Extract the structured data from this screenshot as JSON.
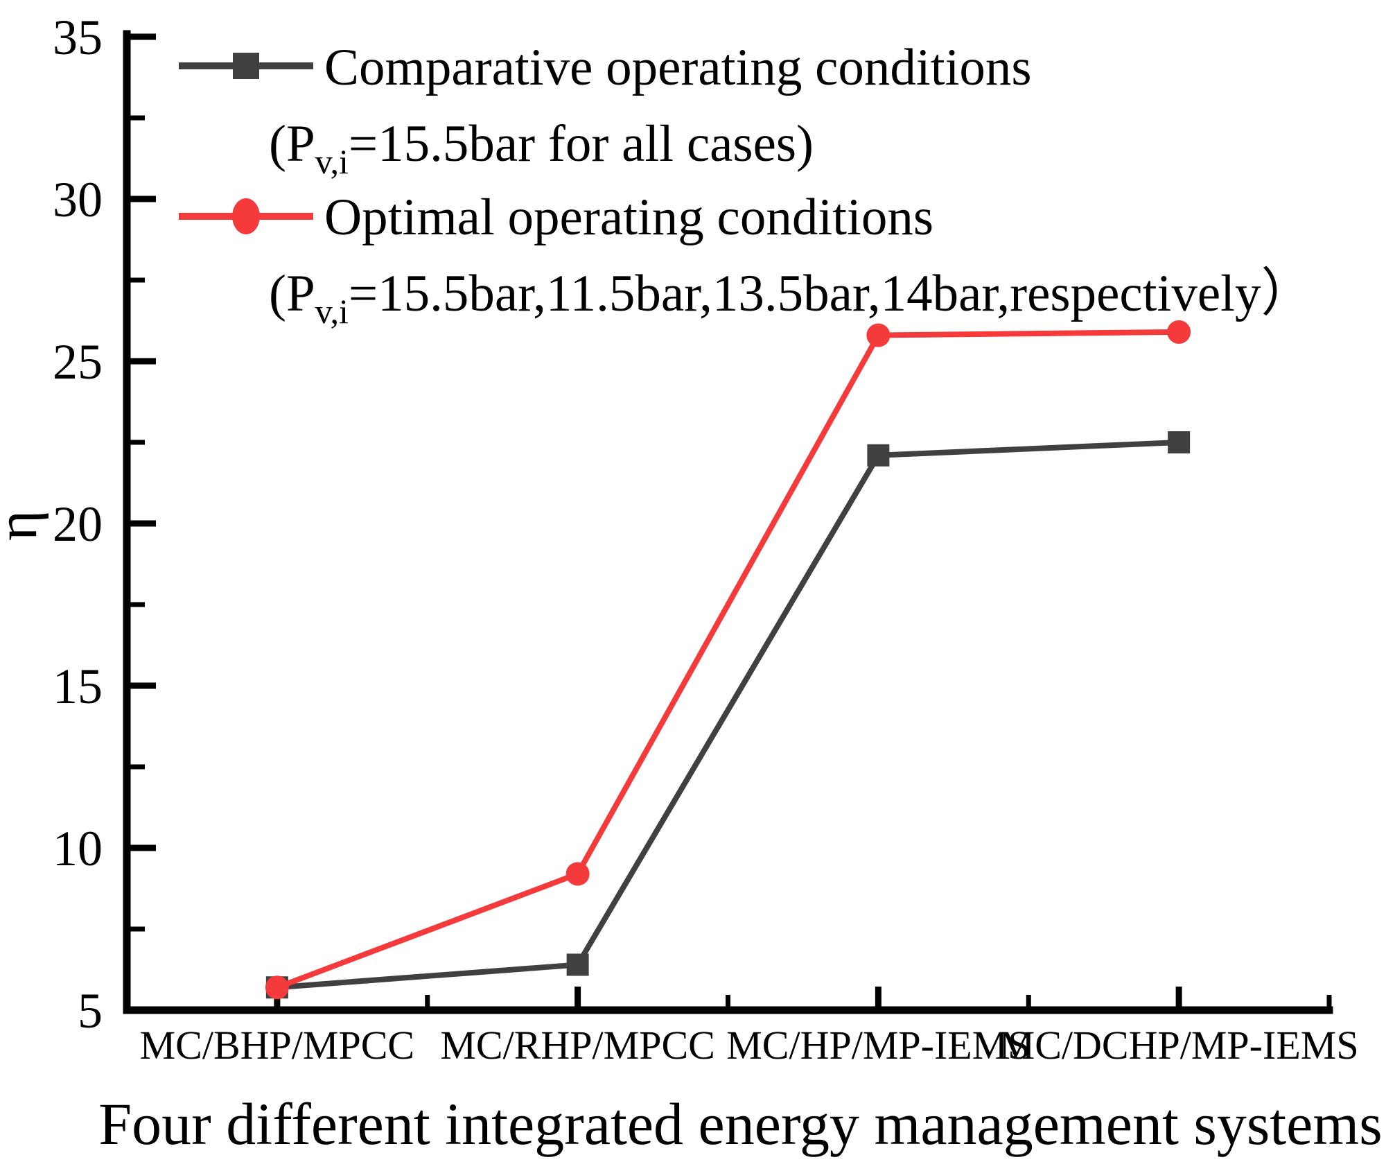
{
  "figure": {
    "background": "#ffffff",
    "axis_color": "#000000"
  },
  "chart_data": {
    "type": "line",
    "categories": [
      "MC/BHP/MPCC",
      "MC/RHP/MPCC",
      "MC/HP/MP-IEMS",
      "MC/DCHP/MP-IEMS"
    ],
    "series": [
      {
        "name": "Comparative operating conditions",
        "detail": {
          "pre": "(P",
          "sub": "v,i",
          "post": "=15.5bar for all cases)"
        },
        "marker": "square",
        "color": "#404040",
        "values": [
          5.7,
          6.4,
          22.1,
          22.5
        ]
      },
      {
        "name": "Optimal operating conditions",
        "detail": {
          "pre": "(P",
          "sub": "v,i",
          "post": "=15.5bar,11.5bar,13.5bar,14bar,respectively）"
        },
        "marker": "circle",
        "color": "#f43a3a",
        "values": [
          5.7,
          9.2,
          25.8,
          25.9
        ]
      }
    ],
    "xlabel": "Four different integrated energy management systems",
    "ylabel": "η",
    "ylim": [
      5,
      35
    ],
    "y_major_step": 5,
    "y_minor_step": 2.5,
    "y_ticks": [
      35,
      30,
      25,
      20,
      15,
      10,
      5
    ],
    "grid": false,
    "legend_position": "top-left"
  }
}
